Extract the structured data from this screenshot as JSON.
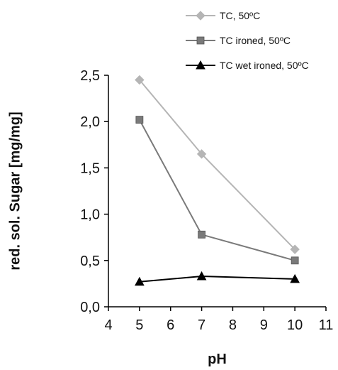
{
  "chart_data": {
    "type": "line",
    "title": "",
    "xlabel": "pH",
    "ylabel": "red. sol. Sugar [mg/mg]",
    "xlim": [
      4,
      11
    ],
    "ylim": [
      0.0,
      2.5
    ],
    "x_ticks": [
      4,
      5,
      6,
      7,
      8,
      9,
      10,
      11
    ],
    "y_ticks": [
      0.0,
      0.5,
      1.0,
      1.5,
      2.0,
      2.5
    ],
    "x_tick_labels": [
      "4",
      "5",
      "6",
      "7",
      "8",
      "9",
      "10",
      "11"
    ],
    "y_tick_labels": [
      "0,0",
      "0,5",
      "1,0",
      "1,5",
      "2,0",
      "2,5"
    ],
    "grid": false,
    "legend_position": "top-right",
    "series": [
      {
        "name": "TC, 50ºC",
        "marker": "diamond",
        "color": "#b5b5b5",
        "x": [
          5,
          7,
          10
        ],
        "y": [
          2.45,
          1.65,
          0.62
        ]
      },
      {
        "name": "TC ironed, 50ºC",
        "marker": "square",
        "color": "#7a7a7a",
        "x": [
          5,
          7,
          10
        ],
        "y": [
          2.02,
          0.78,
          0.5
        ]
      },
      {
        "name": "TC wet ironed, 50ºC",
        "marker": "triangle",
        "color": "#000000",
        "x": [
          5,
          7,
          10
        ],
        "y": [
          0.27,
          0.33,
          0.3
        ]
      }
    ]
  }
}
